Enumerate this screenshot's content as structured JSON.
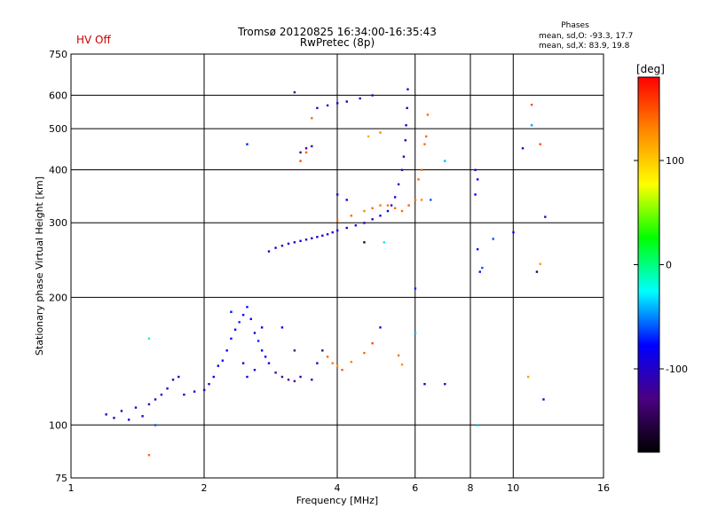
{
  "hv_status": "HV Off",
  "title_line1": "Tromsø 20120825 16:34:00-16:35:43",
  "title_line2": "RwPretec (8p)",
  "phases": {
    "heading": "Phases",
    "line_o": "mean, sd,O: -93.3, 17.7",
    "line_x": "mean, sd,X:  83.9, 19.8"
  },
  "colorbar": {
    "label": "[deg]",
    "ticks": [
      "100",
      "0",
      "-100"
    ],
    "colors": [
      "#ff0000",
      "#ff8800",
      "#ffff00",
      "#00ff00",
      "#00ffff",
      "#0000ff",
      "#4b0082",
      "#000000"
    ]
  },
  "chart_data": {
    "type": "scatter",
    "xlabel": "Frequency [MHz]",
    "ylabel": "Stationary phase Virtual Height [km]",
    "xscale": "log",
    "yscale": "log",
    "xlim": [
      1,
      16
    ],
    "ylim": [
      75,
      750
    ],
    "xticks": [
      1,
      2,
      4,
      6,
      8,
      10,
      16
    ],
    "yticks": [
      75,
      100,
      200,
      300,
      400,
      500,
      600,
      750
    ],
    "xtick_labels": [
      "1",
      "2",
      "4",
      "6",
      "8",
      "10",
      "16"
    ],
    "ytick_labels": [
      "75",
      "100",
      "200",
      "300",
      "400",
      "500",
      "600",
      "750"
    ],
    "grid": true,
    "phase_range_deg": [
      -180,
      180
    ],
    "series": [
      {
        "points": [
          [
            1.2,
            106,
            -100
          ],
          [
            1.25,
            104,
            -95
          ],
          [
            1.3,
            108,
            -100
          ],
          [
            1.35,
            103,
            -100
          ],
          [
            1.4,
            110,
            -95
          ],
          [
            1.45,
            105,
            -100
          ],
          [
            1.5,
            112,
            -100
          ],
          [
            1.55,
            115,
            -95
          ],
          [
            1.6,
            118,
            -100
          ],
          [
            1.65,
            122,
            -100
          ],
          [
            1.7,
            128,
            -95
          ],
          [
            1.75,
            130,
            -100
          ],
          [
            1.8,
            118,
            -100
          ],
          [
            1.9,
            120,
            -95
          ],
          [
            2.0,
            121,
            -100
          ],
          [
            2.05,
            125,
            -90
          ],
          [
            2.1,
            130,
            -85
          ],
          [
            2.15,
            138,
            -80
          ],
          [
            2.2,
            142,
            -75
          ],
          [
            2.25,
            150,
            -80
          ],
          [
            2.3,
            160,
            -85
          ],
          [
            2.35,
            168,
            -75
          ],
          [
            2.4,
            175,
            -70
          ],
          [
            2.45,
            182,
            -80
          ],
          [
            2.5,
            190,
            -75
          ],
          [
            2.55,
            178,
            -85
          ],
          [
            2.6,
            165,
            -90
          ],
          [
            2.65,
            158,
            -70
          ],
          [
            2.7,
            150,
            -80
          ],
          [
            2.75,
            145,
            -85
          ],
          [
            2.8,
            140,
            -95
          ],
          [
            2.9,
            133,
            -120
          ],
          [
            3.0,
            130,
            -125
          ],
          [
            3.1,
            128,
            -125
          ],
          [
            3.2,
            127,
            -125
          ],
          [
            3.3,
            130,
            -115
          ],
          [
            3.5,
            128,
            -100
          ],
          [
            3.6,
            140,
            -110
          ],
          [
            3.7,
            150,
            -125
          ],
          [
            3.8,
            145,
            140
          ],
          [
            3.9,
            140,
            135
          ],
          [
            4.0,
            138,
            120
          ],
          [
            4.1,
            135,
            145
          ],
          [
            4.3,
            141,
            130
          ],
          [
            4.6,
            148,
            140
          ],
          [
            4.8,
            156,
            150
          ],
          [
            5.5,
            146,
            135
          ],
          [
            5.6,
            139,
            125
          ],
          [
            2.45,
            140,
            -80
          ],
          [
            2.5,
            130,
            -75
          ],
          [
            2.6,
            135,
            -90
          ],
          [
            2.7,
            170,
            -80
          ],
          [
            2.3,
            185,
            -75
          ],
          [
            3.0,
            170,
            -85
          ],
          [
            3.2,
            150,
            -125
          ]
        ]
      },
      {
        "points": [
          [
            2.8,
            257,
            -100
          ],
          [
            2.9,
            262,
            -100
          ],
          [
            3.0,
            265,
            -100
          ],
          [
            3.1,
            268,
            -95
          ],
          [
            3.2,
            270,
            -100
          ],
          [
            3.3,
            272,
            -100
          ],
          [
            3.4,
            274,
            -100
          ],
          [
            3.5,
            276,
            -95
          ],
          [
            3.6,
            278,
            -100
          ],
          [
            3.7,
            280,
            -100
          ],
          [
            3.8,
            282,
            -95
          ],
          [
            3.9,
            285,
            -100
          ],
          [
            4.0,
            288,
            -100
          ],
          [
            4.2,
            292,
            -95
          ],
          [
            4.4,
            296,
            -100
          ],
          [
            4.6,
            300,
            -100
          ],
          [
            4.8,
            306,
            -100
          ],
          [
            5.0,
            312,
            -95
          ],
          [
            5.2,
            320,
            -100
          ],
          [
            5.3,
            330,
            -100
          ],
          [
            5.4,
            345,
            -100
          ],
          [
            5.5,
            370,
            -95
          ],
          [
            5.6,
            400,
            -100
          ],
          [
            5.65,
            430,
            -100
          ],
          [
            5.7,
            470,
            -95
          ],
          [
            5.72,
            510,
            -100
          ],
          [
            5.75,
            560,
            -100
          ],
          [
            5.77,
            620,
            -100
          ],
          [
            3.3,
            440,
            -120
          ],
          [
            3.4,
            450,
            -120
          ],
          [
            3.5,
            455,
            -120
          ],
          [
            3.6,
            560,
            -100
          ],
          [
            3.8,
            568,
            -100
          ],
          [
            4.0,
            575,
            -100
          ],
          [
            4.2,
            580,
            -95
          ],
          [
            4.5,
            590,
            -100
          ],
          [
            4.8,
            600,
            -100
          ]
        ]
      },
      {
        "points": [
          [
            4.0,
            305,
            140
          ],
          [
            4.3,
            312,
            140
          ],
          [
            4.6,
            320,
            130
          ],
          [
            4.8,
            325,
            140
          ],
          [
            5.0,
            330,
            135
          ],
          [
            5.2,
            330,
            140
          ],
          [
            5.4,
            325,
            140
          ],
          [
            5.6,
            320,
            140
          ],
          [
            5.8,
            330,
            145
          ],
          [
            6.0,
            340,
            140
          ],
          [
            6.2,
            340,
            130
          ],
          [
            6.1,
            380,
            140
          ],
          [
            6.2,
            400,
            140
          ],
          [
            6.3,
            460,
            140
          ],
          [
            6.35,
            480,
            140
          ],
          [
            6.4,
            540,
            140
          ],
          [
            3.5,
            530,
            140
          ],
          [
            3.4,
            440,
            145
          ],
          [
            3.3,
            420,
            150
          ],
          [
            4.7,
            480,
            110
          ],
          [
            5.0,
            490,
            130
          ]
        ]
      },
      {
        "points": [
          [
            2.5,
            460,
            -70
          ],
          [
            3.2,
            610,
            -120
          ],
          [
            4.0,
            350,
            -100
          ],
          [
            4.2,
            340,
            -90
          ],
          [
            4.6,
            270,
            -160
          ],
          [
            5.1,
            270,
            -30
          ],
          [
            6.0,
            210,
            -70
          ],
          [
            6.5,
            340,
            -60
          ],
          [
            7.0,
            420,
            -40
          ],
          [
            8.2,
            400,
            -90
          ],
          [
            8.3,
            380,
            -80
          ],
          [
            8.2,
            350,
            -80
          ],
          [
            8.3,
            260,
            -75
          ],
          [
            8.4,
            230,
            -75
          ],
          [
            8.5,
            235,
            -60
          ],
          [
            9.0,
            275,
            -60
          ],
          [
            10.0,
            285,
            -95
          ],
          [
            10.5,
            450,
            -100
          ],
          [
            11.0,
            510,
            -45
          ],
          [
            11.0,
            570,
            150
          ],
          [
            11.5,
            460,
            150
          ],
          [
            11.3,
            230,
            -150
          ],
          [
            11.5,
            240,
            120
          ],
          [
            11.8,
            310,
            -110
          ],
          [
            11.7,
            115,
            -110
          ],
          [
            10.8,
            130,
            120
          ],
          [
            7.0,
            125,
            -110
          ],
          [
            6.3,
            125,
            -100
          ],
          [
            6.0,
            165,
            -40
          ],
          [
            5.0,
            170,
            -90
          ],
          [
            1.5,
            160,
            -10
          ],
          [
            1.55,
            100,
            -60
          ],
          [
            1.5,
            85,
            140
          ],
          [
            8.3,
            100,
            -40
          ]
        ]
      }
    ]
  }
}
